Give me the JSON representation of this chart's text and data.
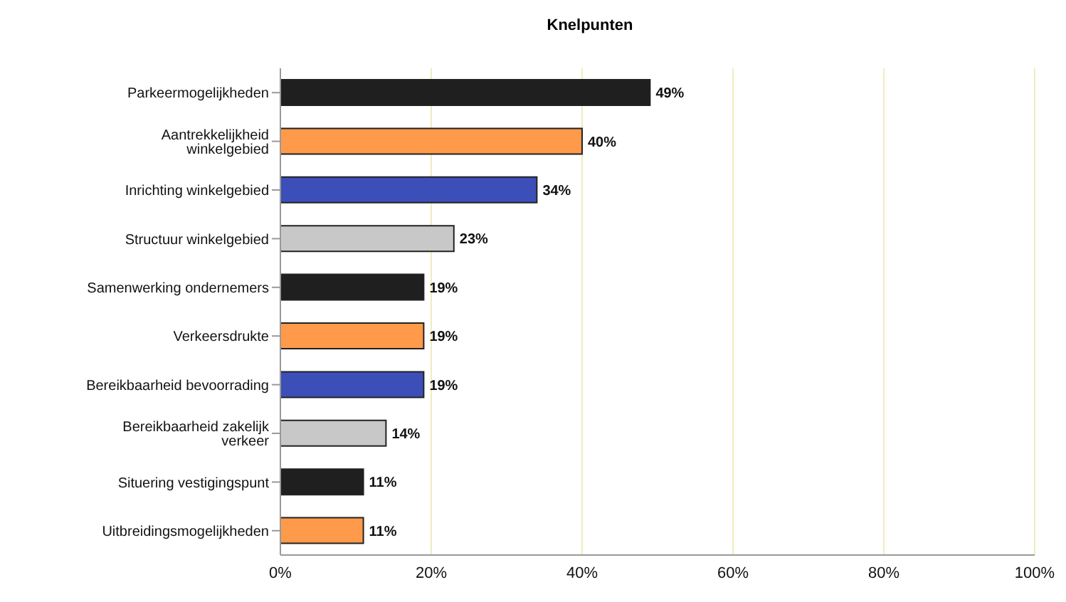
{
  "chart_data": {
    "type": "bar",
    "orientation": "horizontal",
    "title": "Knelpunten",
    "categories": [
      "Parkeermogelijkheden",
      "Aantrekkelijkheid winkelgebied",
      "Inrichting winkelgebied",
      "Structuur winkelgebied",
      "Samenwerking ondernemers",
      "Verkeersdrukte",
      "Bereikbaarheid bevoorrading",
      "Bereikbaarheid zakelijk verkeer",
      "Situering vestigingspunt",
      "Uitbreidingsmogelijkheden"
    ],
    "values": [
      49,
      40,
      34,
      23,
      19,
      19,
      19,
      14,
      11,
      11
    ],
    "colors": [
      "#1f1f1f",
      "#ff9a4a",
      "#3c4fb8",
      "#c8c8c8",
      "#1f1f1f",
      "#ff9a4a",
      "#3c4fb8",
      "#c8c8c8",
      "#1f1f1f",
      "#ff9a4a"
    ],
    "value_labels": [
      "49%",
      "40%",
      "34%",
      "23%",
      "19%",
      "19%",
      "19%",
      "14%",
      "11%",
      "11%"
    ],
    "xlim": [
      0,
      100
    ],
    "xticks": [
      {
        "value": 0,
        "label": "0%"
      },
      {
        "value": 20,
        "label": "20%"
      },
      {
        "value": 40,
        "label": "40%"
      },
      {
        "value": 60,
        "label": "60%"
      },
      {
        "value": 80,
        "label": "80%"
      },
      {
        "value": 100,
        "label": "100%"
      }
    ],
    "grid": "x"
  }
}
